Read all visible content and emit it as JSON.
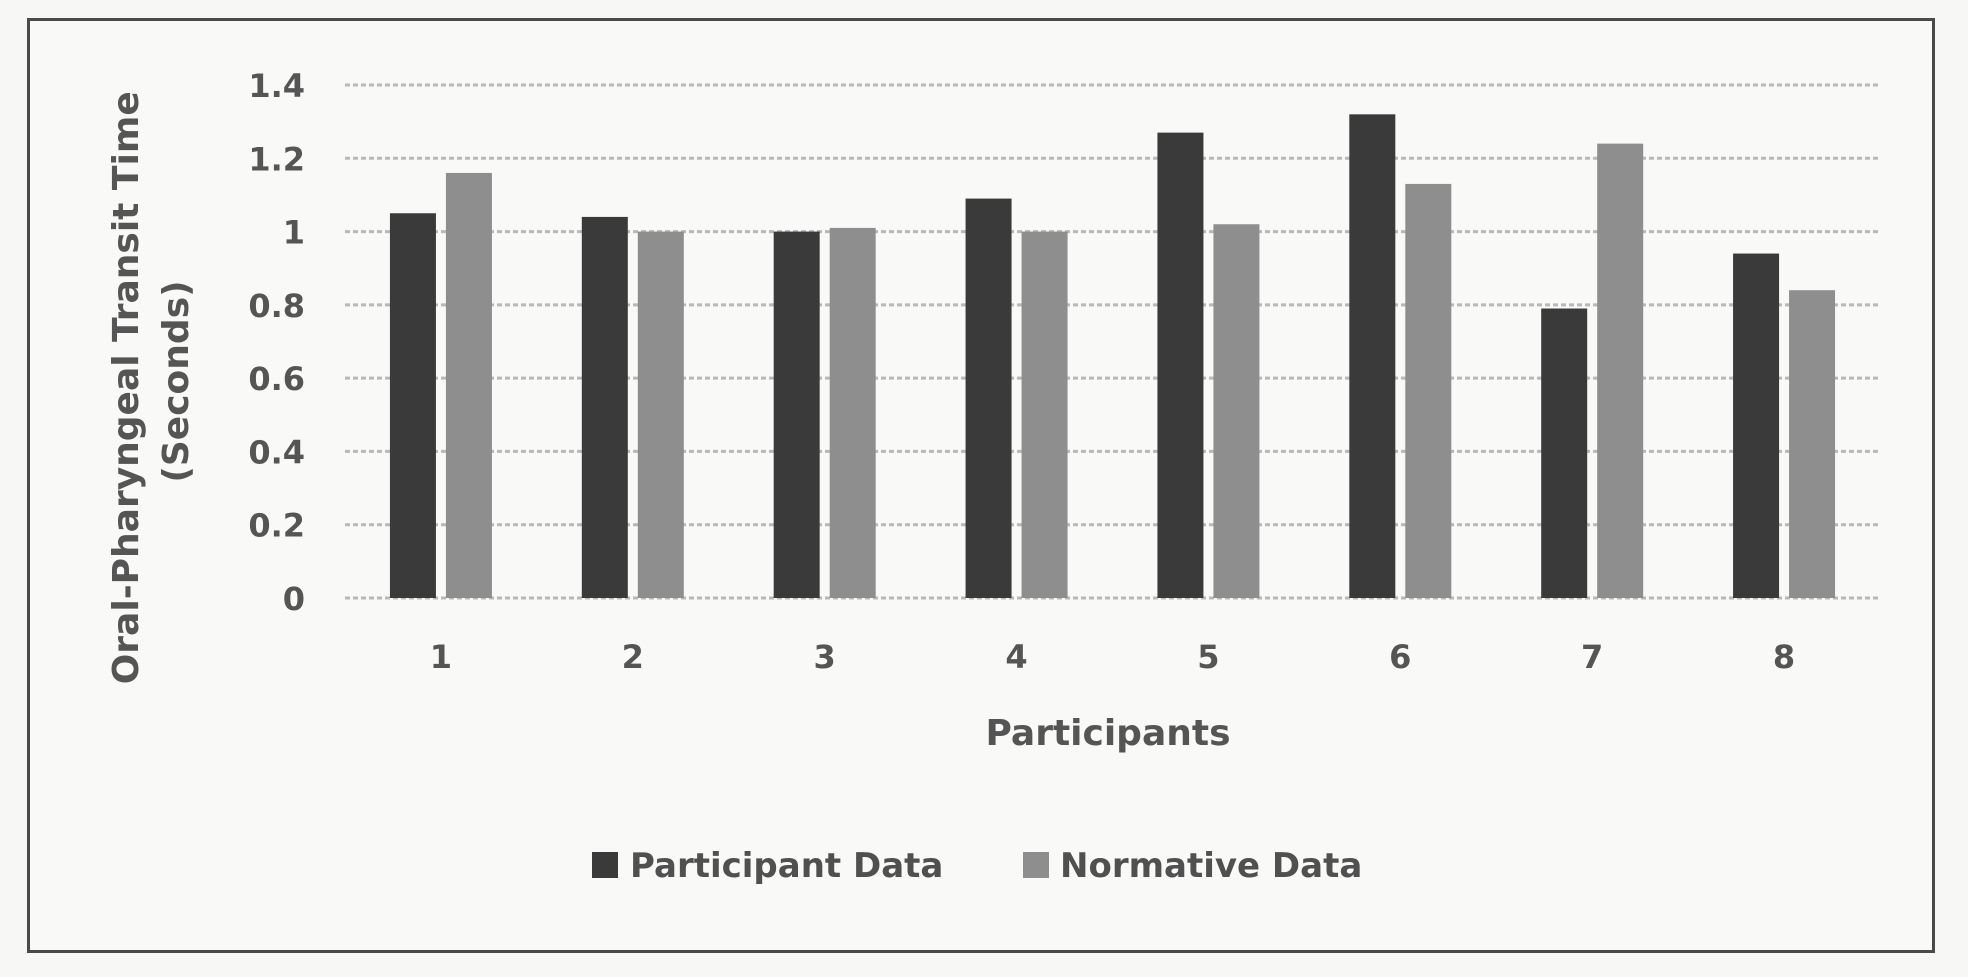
{
  "chart_data": {
    "type": "bar",
    "title": "",
    "xlabel": "Participants",
    "ylabel_lines": [
      "Oral-Pharyngeal Transit Time",
      "(Seconds)"
    ],
    "categories": [
      "1",
      "2",
      "3",
      "4",
      "5",
      "6",
      "7",
      "8"
    ],
    "series": [
      {
        "name": "Participant Data",
        "color": "#3a3a3a",
        "values": [
          1.05,
          1.04,
          1.0,
          1.09,
          1.27,
          1.32,
          0.79,
          0.94
        ]
      },
      {
        "name": "Normative Data",
        "color": "#8e8e8e",
        "values": [
          1.16,
          1.0,
          1.01,
          1.0,
          1.02,
          1.13,
          1.24,
          0.84
        ]
      }
    ],
    "yticks": [
      "0",
      "0.2",
      "0.4",
      "0.6",
      "0.8",
      "1",
      "1.2",
      "1.4"
    ],
    "ylim": [
      0,
      1.4
    ],
    "grid": true,
    "legend_position": "bottom-center"
  }
}
